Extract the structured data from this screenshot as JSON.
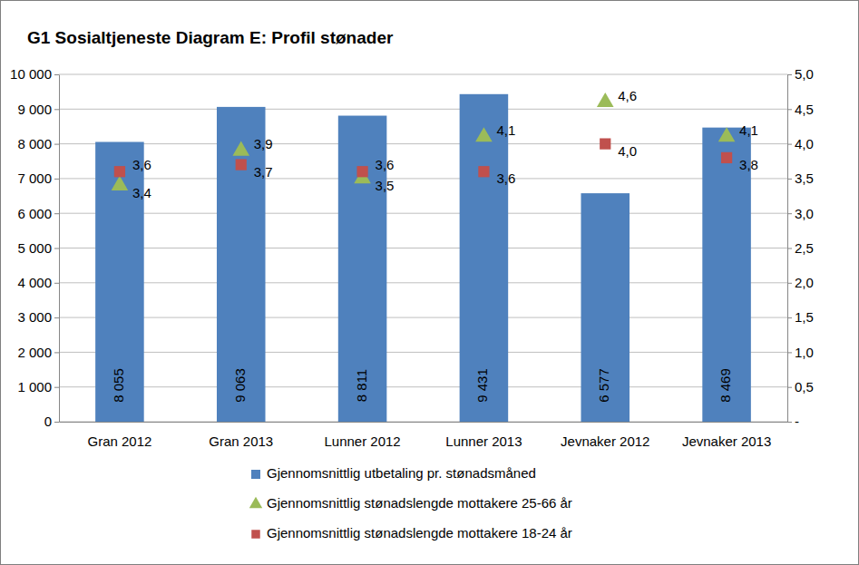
{
  "chart_data": {
    "type": "bar",
    "title": "G1 Sosialtjeneste Diagram E: Profil stønader",
    "categories": [
      "Gran 2012",
      "Gran 2013",
      "Lunner 2012",
      "Lunner 2013",
      "Jevnaker 2012",
      "Jevnaker 2013"
    ],
    "series": [
      {
        "name": "Gjennomsnittlig utbetaling pr. stønadsmåned",
        "type": "bar",
        "color": "#4f81bd",
        "values": [
          8055,
          9063,
          8811,
          9431,
          6577,
          8469
        ],
        "value_labels": [
          "8 055",
          "9 063",
          "8 811",
          "9 431",
          "6 577",
          "8 469"
        ]
      },
      {
        "name": "Gjennomsnittlig stønadslengde mottakere 25-66 år",
        "type": "scatter",
        "marker": "triangle",
        "color": "#9bbb59",
        "axis": "y2",
        "values": [
          3.4,
          3.9,
          3.5,
          4.1,
          4.6,
          4.1
        ],
        "value_labels": [
          "3,4",
          "3,9",
          "3,5",
          "4,1",
          "4,6",
          "4,1"
        ]
      },
      {
        "name": "Gjennomsnittlig stønadslengde mottakere 18-24 år",
        "type": "scatter",
        "marker": "square",
        "color": "#c0504d",
        "axis": "y2",
        "values": [
          3.6,
          3.7,
          3.6,
          3.6,
          4.0,
          3.8
        ],
        "value_labels": [
          "3,6",
          "3,7",
          "3,6",
          "3,6",
          "4,0",
          "3,8"
        ]
      }
    ],
    "ylim": [
      0,
      10000
    ],
    "yticks": [
      0,
      {
        "value": 1000,
        "label": "1 000"
      },
      {
        "value": 2000,
        "label": "2 000"
      },
      {
        "value": 3000,
        "label": "3 000"
      },
      {
        "value": 4000,
        "label": "4 000"
      },
      {
        "value": 5000,
        "label": "5 000"
      },
      {
        "value": 6000,
        "label": "6 000"
      },
      {
        "value": 7000,
        "label": "7 000"
      },
      {
        "value": 8000,
        "label": "8 000"
      },
      {
        "value": 9000,
        "label": "9 000"
      },
      {
        "value": 10000,
        "label": "10 000"
      }
    ],
    "y2lim": [
      0,
      5
    ],
    "y2ticks": [
      {
        "value": 0,
        "label": "-"
      },
      {
        "value": 0.5,
        "label": "0,5"
      },
      {
        "value": 1,
        "label": "1,0"
      },
      {
        "value": 1.5,
        "label": "1,5"
      },
      {
        "value": 2,
        "label": "2,0"
      },
      {
        "value": 2.5,
        "label": "2,5"
      },
      {
        "value": 3,
        "label": "3,0"
      },
      {
        "value": 3.5,
        "label": "3,5"
      },
      {
        "value": 4,
        "label": "4,0"
      },
      {
        "value": 4.5,
        "label": "4,5"
      },
      {
        "value": 5,
        "label": "5,0"
      }
    ],
    "grid": true,
    "data_labels": true,
    "legend": "bottom"
  }
}
